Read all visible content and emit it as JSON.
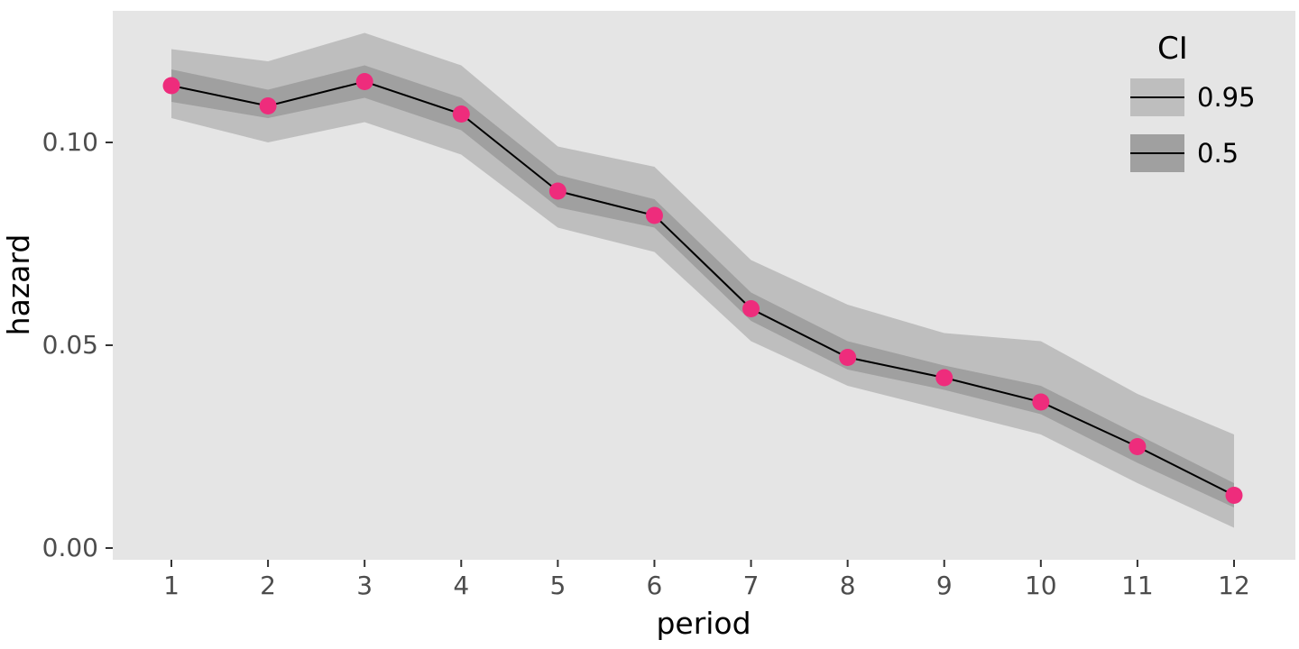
{
  "figure": {
    "background": "#FFFFFF",
    "panel_background": "#E5E5E5",
    "tick_color": "#333333"
  },
  "chart_data": {
    "type": "line",
    "title": "",
    "xlabel": "period",
    "ylabel": "hazard",
    "x": [
      1,
      2,
      3,
      4,
      5,
      6,
      7,
      8,
      9,
      10,
      11,
      12
    ],
    "x_ticks": [
      "1",
      "2",
      "3",
      "4",
      "5",
      "6",
      "7",
      "8",
      "9",
      "10",
      "11",
      "12"
    ],
    "y_ticks": [
      {
        "value": 0.0,
        "label": "0.00"
      },
      {
        "value": 0.05,
        "label": "0.05"
      },
      {
        "value": 0.1,
        "label": "0.10"
      }
    ],
    "ylim": [
      0,
      0.132
    ],
    "grid": "off",
    "series": [
      {
        "name": "hazard",
        "values": [
          0.114,
          0.109,
          0.115,
          0.107,
          0.088,
          0.082,
          0.059,
          0.047,
          0.042,
          0.036,
          0.025,
          0.013
        ]
      },
      {
        "name": "ci95_upper",
        "values": [
          0.123,
          0.12,
          0.127,
          0.119,
          0.099,
          0.094,
          0.071,
          0.06,
          0.053,
          0.051,
          0.038,
          0.028
        ]
      },
      {
        "name": "ci95_lower",
        "values": [
          0.106,
          0.1,
          0.105,
          0.097,
          0.079,
          0.073,
          0.051,
          0.04,
          0.034,
          0.028,
          0.016,
          0.005
        ]
      },
      {
        "name": "ci50_upper",
        "values": [
          0.118,
          0.113,
          0.119,
          0.111,
          0.092,
          0.086,
          0.063,
          0.051,
          0.045,
          0.04,
          0.028,
          0.016
        ]
      },
      {
        "name": "ci50_lower",
        "values": [
          0.11,
          0.106,
          0.111,
          0.103,
          0.084,
          0.079,
          0.056,
          0.044,
          0.039,
          0.033,
          0.021,
          0.01
        ]
      }
    ],
    "colors": {
      "point": "#EE2C7C",
      "line": "#000000",
      "ribbon95": "#BEBEBE",
      "ribbon50": "#A0A0A0"
    },
    "legend": {
      "title": "CI",
      "position": "top-right",
      "entries": [
        {
          "label": "0.95",
          "color": "#BEBEBE"
        },
        {
          "label": "0.5",
          "color": "#A0A0A0"
        }
      ]
    }
  }
}
